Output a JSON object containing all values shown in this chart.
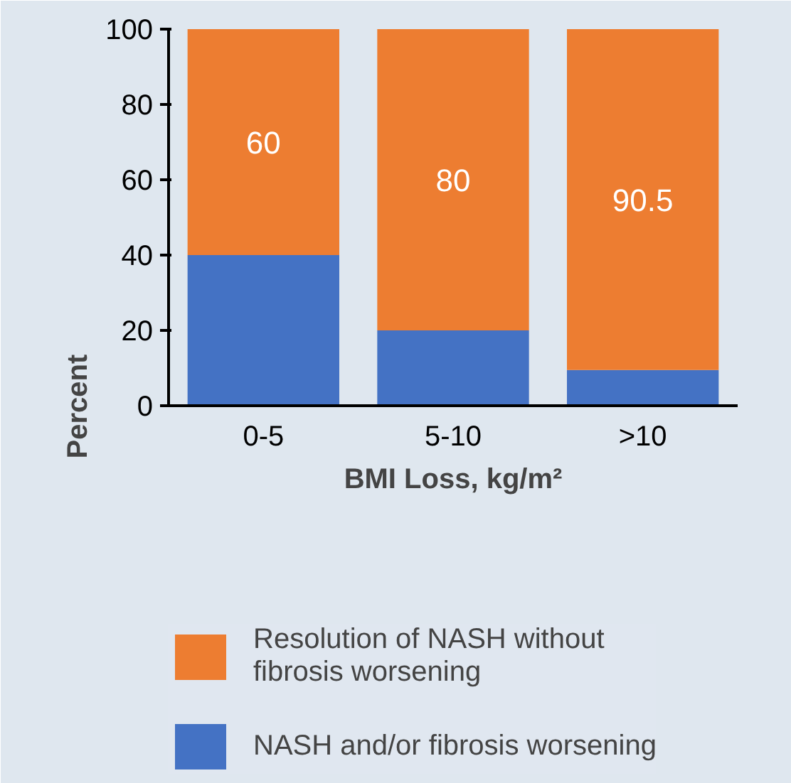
{
  "chart_data": {
    "type": "bar",
    "stacked": true,
    "xlabel": "BMI Loss, kg/m²",
    "ylabel": "Percent",
    "categories": [
      "0-5",
      "5-10",
      ">10"
    ],
    "series": [
      {
        "name": "NASH and/or fibrosis worsening",
        "color": "#4472c4",
        "values": [
          40,
          20,
          9.5
        ]
      },
      {
        "name": "Resolution of NASH without fibrosis worsening",
        "color": "#ed7d31",
        "values": [
          60,
          80,
          90.5
        ],
        "value_labels": [
          "60",
          "80",
          "90.5"
        ]
      }
    ],
    "ylim": [
      0,
      100
    ],
    "yticks": [
      0,
      20,
      40,
      60,
      80,
      100
    ],
    "grid": false,
    "legend": "bottom"
  }
}
